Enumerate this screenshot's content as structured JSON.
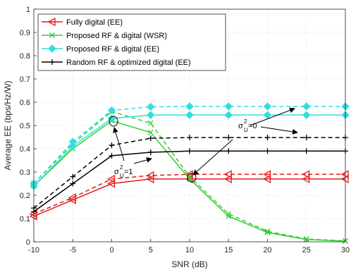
{
  "chart_data": {
    "type": "line",
    "title": "",
    "xlabel": "SNR (dB)",
    "ylabel": "Average EE (bps/Hz/W)",
    "xlim": [
      -10,
      30
    ],
    "ylim": [
      0,
      1
    ],
    "xticks": [
      "-10",
      "-5",
      "0",
      "5",
      "10",
      "15",
      "20",
      "25",
      "30"
    ],
    "yticks": [
      "0",
      "0.1",
      "0.2",
      "0.3",
      "0.4",
      "0.5",
      "0.6",
      "0.7",
      "0.8",
      "0.9",
      "1"
    ],
    "grid": true,
    "legend_position": "top-left",
    "x": [
      -10,
      -5,
      0,
      5,
      10,
      15,
      20,
      25,
      30
    ],
    "series": [
      {
        "name": "Fully digital (EE)",
        "color": "#e41a1c",
        "marker": "triangle-left",
        "linestyle": "solid",
        "values": [
          0.11,
          0.18,
          0.25,
          0.27,
          0.27,
          0.27,
          0.27,
          0.27,
          0.27
        ]
      },
      {
        "name": "",
        "color": "#e41a1c",
        "marker": "triangle-left",
        "linestyle": "dashed",
        "values": [
          0.12,
          0.19,
          0.27,
          0.285,
          0.29,
          0.29,
          0.29,
          0.29,
          0.29
        ]
      },
      {
        "name": "Proposed RF & digital (WSR)",
        "color": "#33cc33",
        "marker": "x",
        "linestyle": "solid",
        "values": [
          0.24,
          0.4,
          0.52,
          0.47,
          0.27,
          0.11,
          0.04,
          0.01,
          0.003
        ]
      },
      {
        "name": "",
        "color": "#33cc33",
        "marker": "x",
        "linestyle": "dashed",
        "values": [
          0.25,
          0.42,
          0.56,
          0.51,
          0.28,
          0.12,
          0.045,
          0.012,
          0.004
        ]
      },
      {
        "name": "Proposed RF & digital (EE)",
        "color": "#33dddd",
        "marker": "diamond",
        "linestyle": "solid",
        "values": [
          0.24,
          0.41,
          0.53,
          0.545,
          0.545,
          0.545,
          0.545,
          0.545,
          0.545
        ]
      },
      {
        "name": "",
        "color": "#33dddd",
        "marker": "diamond",
        "linestyle": "dashed",
        "values": [
          0.25,
          0.43,
          0.565,
          0.58,
          0.582,
          0.582,
          0.582,
          0.582,
          0.582
        ]
      },
      {
        "name": "Random RF & optimized digital (EE)",
        "color": "#000000",
        "marker": "plus",
        "linestyle": "solid",
        "values": [
          0.13,
          0.25,
          0.37,
          0.385,
          0.39,
          0.39,
          0.39,
          0.39,
          0.39
        ]
      },
      {
        "name": "",
        "color": "#000000",
        "marker": "plus",
        "linestyle": "dashed",
        "values": [
          0.145,
          0.28,
          0.415,
          0.445,
          0.448,
          0.448,
          0.448,
          0.448,
          0.448
        ]
      }
    ],
    "annotations": [
      {
        "text_main": "σ",
        "sup": "2",
        "sub": "U",
        "tail": "=1"
      },
      {
        "text_main": "σ",
        "sup": "2",
        "sub": "U",
        "tail": "=0"
      }
    ]
  }
}
